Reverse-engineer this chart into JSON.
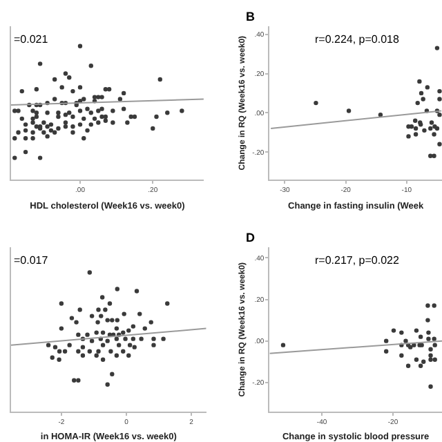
{
  "chart_data": [
    {
      "type": "scatter",
      "xlabel": "HDL cholesterol (Week16 vs. week0)",
      "annotations": [
        "=0.021"
      ],
      "xlim": [
        -0.19,
        0.34
      ],
      "ylim": [
        -0.34,
        0.44
      ],
      "xticks": [
        {
          "value": 0,
          "label": ".00"
        },
        {
          "value": 0.2,
          "label": ".20"
        }
      ],
      "tick_labels": "x",
      "grid": false,
      "series": [
        {
          "color": "#3a3a3a",
          "marker": "circle",
          "x": [
            0,
            -0.11,
            0.03,
            -0.04,
            -0.03,
            -0.07,
            -0.05,
            -0.16,
            -0.12,
            0.0,
            0.07,
            0.08,
            0.12,
            0.22,
            -0.02,
            0.11,
            -0.01,
            0.01,
            0.04,
            0.05,
            0.06,
            -0.05,
            -0.04,
            -0.12,
            -0.11,
            -0.09,
            -0.07,
            -0.14,
            -0.01,
            0.0,
            0.04,
            -0.18,
            -0.17,
            -0.13,
            -0.12,
            -0.09,
            -0.06,
            -0.04,
            -0.03,
            0.0,
            0.02,
            0.03,
            0.05,
            0.06,
            0.09,
            0.12,
            0.15,
            0.14,
            0.21,
            0.24,
            0.28,
            -0.16,
            -0.13,
            -0.12,
            -0.13,
            -0.1,
            -0.06,
            -0.04,
            -0.02,
            0.01,
            0.04,
            0.06,
            0.07,
            0.07,
            0.05,
            0.09,
            0.13,
            -0.15,
            -0.12,
            -0.11,
            -0.11,
            -0.09,
            -0.08,
            -0.04,
            -0.02,
            0.0,
            0.03,
            -0.17,
            -0.15,
            -0.13,
            -0.1,
            -0.08,
            -0.07,
            -0.06,
            -0.02,
            0.02,
            0.2,
            -0.18,
            -0.15,
            -0.13,
            -0.09,
            0.01,
            -0.15,
            -0.11,
            -0.18
          ],
          "values": [
            0.34,
            0.25,
            0.24,
            0.2,
            0.18,
            0.17,
            0.13,
            0.11,
            0.12,
            0.13,
            0.12,
            0.12,
            0.1,
            0.17,
            0.11,
            0.07,
            0.05,
            0.07,
            0.08,
            0.08,
            0.08,
            0.05,
            0.05,
            0.04,
            0.04,
            0.05,
            0.07,
            0.04,
            0.04,
            0.06,
            0.06,
            0.01,
            0.01,
            0.01,
            0.0,
            0.0,
            0.0,
            -0.01,
            0.0,
            0.01,
            0.02,
            0.0,
            0.01,
            0.02,
            0.01,
            0.02,
            -0.02,
            -0.02,
            -0.02,
            0.0,
            0.01,
            -0.03,
            -0.03,
            -0.02,
            -0.05,
            -0.05,
            -0.02,
            -0.05,
            -0.02,
            -0.03,
            -0.03,
            -0.02,
            -0.02,
            -0.04,
            -0.05,
            -0.05,
            -0.05,
            -0.06,
            -0.07,
            -0.08,
            -0.07,
            -0.07,
            -0.06,
            -0.07,
            -0.07,
            -0.06,
            -0.06,
            -0.1,
            -0.09,
            -0.1,
            -0.1,
            -0.09,
            -0.1,
            -0.08,
            -0.1,
            -0.09,
            -0.08,
            -0.13,
            -0.13,
            -0.13,
            -0.12,
            -0.13,
            -0.2,
            -0.23,
            -0.23
          ]
        },
        {
          "type": "line",
          "color": "#9a9a9a",
          "line_style": "solid",
          "x": [
            -0.19,
            0.34
          ],
          "values": [
            0.04,
            0.07
          ]
        }
      ]
    },
    {
      "type": "scatter",
      "title": "B",
      "xlabel": "Change in fasting insulin (Week",
      "ylabel": "Change in RQ (Week16 vs. week0)",
      "annotations": [
        "r=0.224, p=0.018"
      ],
      "xlim": [
        -32.5,
        -4.2
      ],
      "ylim": [
        -0.34,
        0.44
      ],
      "xticks": [
        -30,
        -20,
        -10
      ],
      "yticks": [
        {
          "value": -0.2,
          "label": "-.20"
        },
        {
          "value": 0,
          "label": ".00"
        },
        {
          "value": 0.2,
          "label": ".20"
        },
        {
          "value": 0.4,
          "label": ".40"
        }
      ],
      "grid": false,
      "series": [
        {
          "color": "#3a3a3a",
          "marker": "circle",
          "x": [
            -24.9,
            -19.5,
            -14.3,
            -5.0,
            -7.9,
            -6.6,
            -7.6,
            -7.3,
            -8.2,
            -4.6,
            -4.6,
            -5.0,
            -6.7,
            -4.6,
            -8.6,
            -7.8,
            -7.7,
            -9.7,
            -9.2,
            -5.9,
            -5.4,
            -5.0,
            -6.1,
            -7.1,
            -8.5,
            -9.7,
            -8.5,
            -5.5,
            -6.1,
            -5.5,
            -4.6
          ],
          "values": [
            0.05,
            0.01,
            -0.01,
            0.33,
            0.16,
            0.13,
            0.1,
            0.07,
            0.05,
            0.11,
            0.07,
            0.01,
            0.01,
            -0.01,
            -0.04,
            -0.05,
            -0.06,
            -0.07,
            -0.07,
            -0.05,
            -0.07,
            -0.08,
            -0.08,
            -0.09,
            -0.08,
            -0.12,
            -0.11,
            -0.11,
            -0.22,
            -0.22,
            -0.16
          ]
        },
        {
          "type": "line",
          "color": "#9a9a9a",
          "line_style": "solid",
          "x": [
            -32.3,
            -4.3
          ],
          "values": [
            -0.08,
            0.01
          ]
        }
      ]
    },
    {
      "type": "scatter",
      "xlabel": "in HOMA-IR (Week16 vs. week0)",
      "annotations": [
        "=0.017"
      ],
      "xlim": [
        -3.55,
        2.46
      ],
      "ylim": [
        -0.34,
        0.45
      ],
      "xticks": [
        -2,
        0,
        2
      ],
      "tick_labels": "x",
      "grid": false,
      "series": [
        {
          "color": "#3a3a3a",
          "marker": "circle",
          "x": [
            -1.13,
            -0.28,
            0.32,
            -0.74,
            -0.51,
            -2.0,
            1.26,
            -1.43,
            -0.86,
            -0.65,
            0.41,
            -1.68,
            -1.06,
            -0.78,
            -0.07,
            -1.54,
            -0.88,
            -0.58,
            -0.44,
            -0.28,
            0.76,
            -2.0,
            0.21,
            0.57,
            -0.3,
            -1.48,
            -1.2,
            -0.92,
            -0.72,
            -0.51,
            -0.4,
            -0.23,
            -0.1,
            0.07,
            -1.34,
            -1.06,
            -0.79,
            -0.58,
            -0.3,
            -0.03,
            0.21,
            0.46,
            0.84,
            1.14,
            -2.4,
            -2.19,
            -1.75,
            -1.34,
            -0.72,
            -0.23,
            0.11,
            0.84,
            -2.06,
            -1.89,
            -1.48,
            -1.13,
            -0.86,
            -0.48,
            -0.1,
            0.25,
            -2.28,
            -2.07,
            -1.34,
            -0.92,
            -0.72,
            -0.3,
            0.07,
            -0.44,
            -1.61,
            -1.48,
            -0.58
          ],
          "values": [
            0.33,
            0.25,
            0.24,
            0.21,
            0.18,
            0.18,
            0.18,
            0.15,
            0.15,
            0.15,
            0.13,
            0.11,
            0.12,
            0.12,
            0.13,
            0.09,
            0.09,
            0.1,
            0.1,
            0.1,
            0.09,
            0.06,
            0.07,
            0.06,
            0.06,
            0.03,
            0.03,
            0.04,
            0.04,
            0.03,
            0.03,
            0.03,
            0.04,
            0.05,
            0.01,
            0.0,
            0.01,
            0.0,
            0.01,
            0.01,
            0.01,
            0.01,
            0.01,
            0.01,
            -0.02,
            -0.03,
            -0.02,
            -0.03,
            -0.02,
            -0.02,
            -0.02,
            -0.02,
            -0.05,
            -0.05,
            -0.05,
            -0.05,
            -0.05,
            -0.05,
            -0.05,
            -0.03,
            -0.08,
            -0.09,
            -0.07,
            -0.07,
            -0.09,
            -0.07,
            -0.07,
            -0.16,
            -0.19,
            -0.19,
            -0.21
          ]
        },
        {
          "type": "line",
          "color": "#9a9a9a",
          "line_style": "solid",
          "x": [
            -3.55,
            2.46
          ],
          "values": [
            -0.02,
            0.06
          ]
        }
      ]
    },
    {
      "type": "scatter",
      "title": "D",
      "xlabel": "Change in systolic blood pressure",
      "ylabel": "Change in RQ (Week16 vs. week0)",
      "annotations": [
        "r=0.217, p=0.022"
      ],
      "xlim": [
        -54.7,
        -6.2
      ],
      "ylim": [
        -0.34,
        0.45
      ],
      "xticks": [
        -40,
        -20
      ],
      "yticks": [
        {
          "value": -0.2,
          "label": "-.20"
        },
        {
          "value": 0,
          "label": ".00"
        },
        {
          "value": 0.2,
          "label": ".20"
        },
        {
          "value": 0.4,
          "label": ".40"
        }
      ],
      "grid": false,
      "series": [
        {
          "color": "#3a3a3a",
          "marker": "circle",
          "x": [
            -50.9,
            -21.9,
            -21.9,
            -19.8,
            -17.6,
            -17.6,
            -17.6,
            -16.4,
            -15.7,
            -15.1,
            -14.1,
            -13.4,
            -13.4,
            -12.5,
            -12.2,
            -11.9,
            -15.7,
            -12.2,
            -11.4,
            -10.2,
            -10.2,
            -10.0,
            -10.0,
            -9.4,
            -9.4,
            -9.4,
            -9.4,
            -8.4,
            -8.4,
            -8.2,
            -8.2
          ],
          "values": [
            -0.02,
            0.0,
            -0.05,
            0.05,
            0.04,
            -0.02,
            -0.07,
            0.0,
            -0.02,
            -0.03,
            -0.02,
            0.05,
            -0.09,
            -0.02,
            0.02,
            -0.02,
            -0.12,
            -0.12,
            -0.1,
            0.17,
            0.1,
            0.04,
            0.01,
            -0.04,
            -0.07,
            -0.09,
            -0.22,
            0.17,
            0.01,
            -0.02,
            -0.09
          ]
        },
        {
          "type": "line",
          "color": "#9a9a9a",
          "line_style": "solid",
          "x": [
            -54.7,
            -6.2
          ],
          "values": [
            -0.06,
            0.0
          ]
        }
      ]
    }
  ]
}
